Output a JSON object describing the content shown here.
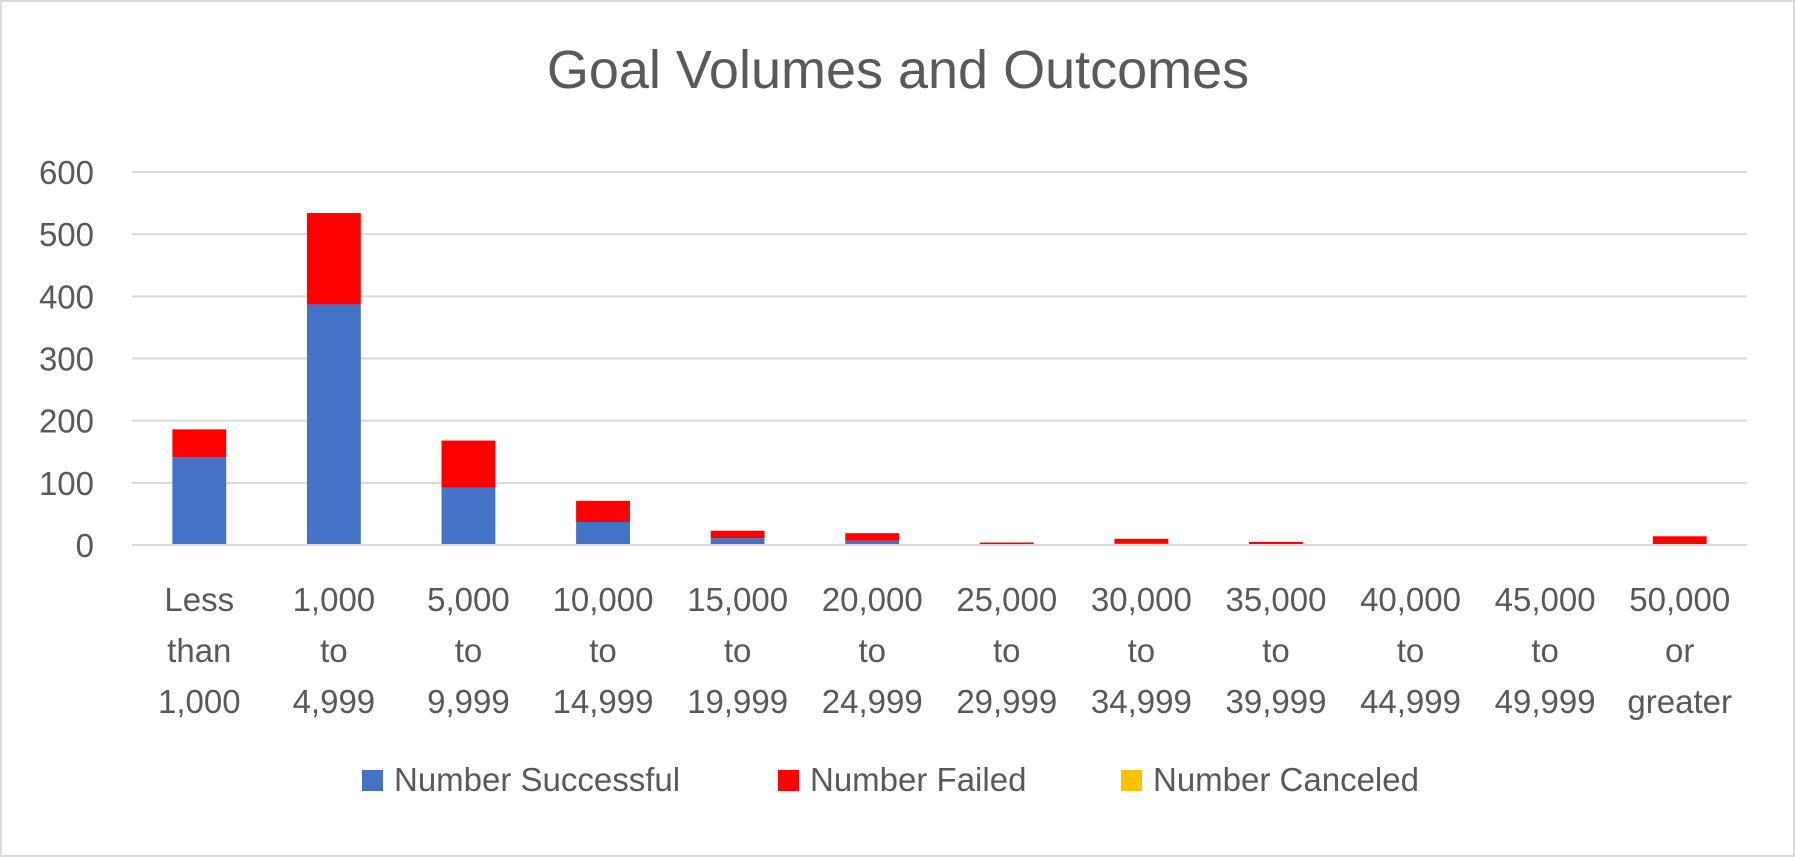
{
  "chart_data": {
    "type": "bar",
    "stacked": true,
    "title": "Goal Volumes and Outcomes",
    "xlabel": "",
    "ylabel": "",
    "ylim": [
      0,
      600
    ],
    "yticks": [
      "0",
      "100",
      "200",
      "300",
      "400",
      "500",
      "600"
    ],
    "grid": true,
    "legend_position": "bottom",
    "categories": [
      [
        "Less",
        "than",
        "1,000"
      ],
      [
        "1,000",
        "to",
        "4,999"
      ],
      [
        "5,000",
        "to",
        "9,999"
      ],
      [
        "10,000",
        "to",
        "14,999"
      ],
      [
        "15,000",
        "to",
        "19,999"
      ],
      [
        "20,000",
        "to",
        "24,999"
      ],
      [
        "25,000",
        "to",
        "29,999"
      ],
      [
        "30,000",
        "to",
        "34,999"
      ],
      [
        "35,000",
        "to",
        "39,999"
      ],
      [
        "40,000",
        "to",
        "44,999"
      ],
      [
        "45,000",
        "to",
        "49,999"
      ],
      [
        "50,000",
        "or",
        "greater"
      ]
    ],
    "series": [
      {
        "name": "Number Successful",
        "color": "#4472c4",
        "values": [
          141,
          387,
          92,
          37,
          11,
          7,
          1,
          2,
          1,
          0,
          0,
          1
        ]
      },
      {
        "name": "Number Failed",
        "color": "#ff0000",
        "values": [
          45,
          147,
          76,
          34,
          12,
          12,
          3,
          8,
          4,
          0,
          0,
          13
        ]
      },
      {
        "name": "Number Canceled",
        "color": "#ffc000",
        "values": [
          0,
          0,
          0,
          0,
          0,
          0,
          0,
          0,
          0,
          0,
          0,
          0
        ]
      }
    ]
  },
  "colors": {
    "gridline": "#d9d9d9",
    "axis": "#d9d9d9",
    "text": "#595959"
  }
}
